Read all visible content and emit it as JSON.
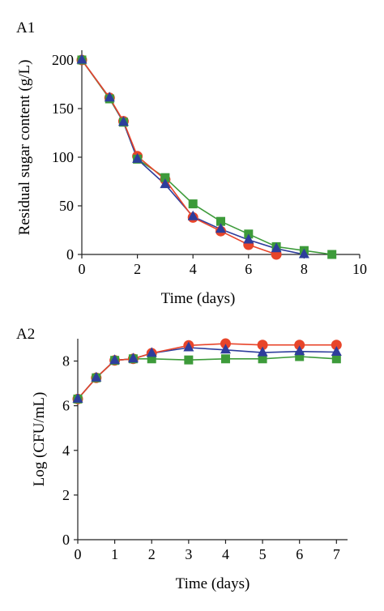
{
  "chart_data": [
    {
      "panel_label": "A1",
      "type": "line",
      "xlabel": "Time (days)",
      "ylabel": "Residual sugar content (g/L)",
      "xlim": [
        0,
        10
      ],
      "ylim": [
        0,
        210
      ],
      "xticks": [
        0,
        2,
        4,
        6,
        8,
        10
      ],
      "yticks": [
        0,
        50,
        100,
        150,
        200
      ],
      "grid": false,
      "legend": "none",
      "series": [
        {
          "marker": "circle",
          "color": "#e8452a",
          "points": [
            [
              0,
              200
            ],
            [
              1,
              161
            ],
            [
              1.5,
              137
            ],
            [
              2,
              101
            ],
            [
              3,
              77
            ],
            [
              4,
              38
            ],
            [
              5,
              24
            ],
            [
              6,
              10
            ],
            [
              7,
              0
            ]
          ]
        },
        {
          "marker": "square",
          "color": "#3d9b3a",
          "points": [
            [
              0,
              200
            ],
            [
              1,
              160
            ],
            [
              1.5,
              136
            ],
            [
              2,
              98
            ],
            [
              3,
              79
            ],
            [
              4,
              52
            ],
            [
              5,
              34
            ],
            [
              6,
              21
            ],
            [
              7,
              8
            ],
            [
              8,
              4
            ],
            [
              9,
              0
            ]
          ]
        },
        {
          "marker": "triangle",
          "color": "#2e3d9c",
          "points": [
            [
              0,
              200
            ],
            [
              1,
              161
            ],
            [
              1.5,
              136
            ],
            [
              2,
              98
            ],
            [
              3,
              72
            ],
            [
              4,
              39
            ],
            [
              5,
              26
            ],
            [
              6,
              15
            ],
            [
              7,
              6
            ],
            [
              8,
              0
            ]
          ]
        }
      ]
    },
    {
      "panel_label": "A2",
      "type": "line",
      "xlabel": "Time (days)",
      "ylabel": "Log (CFU/mL)",
      "xlim": [
        0,
        7.3
      ],
      "ylim": [
        0,
        9
      ],
      "xticks": [
        0,
        1,
        2,
        3,
        4,
        5,
        6,
        7
      ],
      "yticks": [
        0,
        2,
        4,
        6,
        8
      ],
      "grid": false,
      "legend": "none",
      "series": [
        {
          "marker": "circle",
          "color": "#e8452a",
          "points": [
            [
              0,
              6.3
            ],
            [
              0.5,
              7.25
            ],
            [
              1,
              8.03
            ],
            [
              1.5,
              8.1
            ],
            [
              2,
              8.35
            ],
            [
              3,
              8.7
            ],
            [
              4,
              8.78
            ],
            [
              5,
              8.72
            ],
            [
              6,
              8.72
            ],
            [
              7,
              8.72
            ]
          ]
        },
        {
          "marker": "square",
          "color": "#3d9b3a",
          "points": [
            [
              0,
              6.3
            ],
            [
              0.5,
              7.25
            ],
            [
              1,
              8.03
            ],
            [
              1.5,
              8.1
            ],
            [
              2,
              8.1
            ],
            [
              3,
              8.05
            ],
            [
              4,
              8.1
            ],
            [
              5,
              8.1
            ],
            [
              6,
              8.2
            ],
            [
              7,
              8.1
            ]
          ]
        },
        {
          "marker": "triangle",
          "color": "#2e3d9c",
          "points": [
            [
              0,
              6.3
            ],
            [
              0.5,
              7.25
            ],
            [
              1,
              8.03
            ],
            [
              1.5,
              8.1
            ],
            [
              2,
              8.35
            ],
            [
              3,
              8.6
            ],
            [
              4,
              8.5
            ],
            [
              5,
              8.38
            ],
            [
              6,
              8.43
            ],
            [
              7,
              8.4
            ]
          ]
        }
      ]
    }
  ]
}
